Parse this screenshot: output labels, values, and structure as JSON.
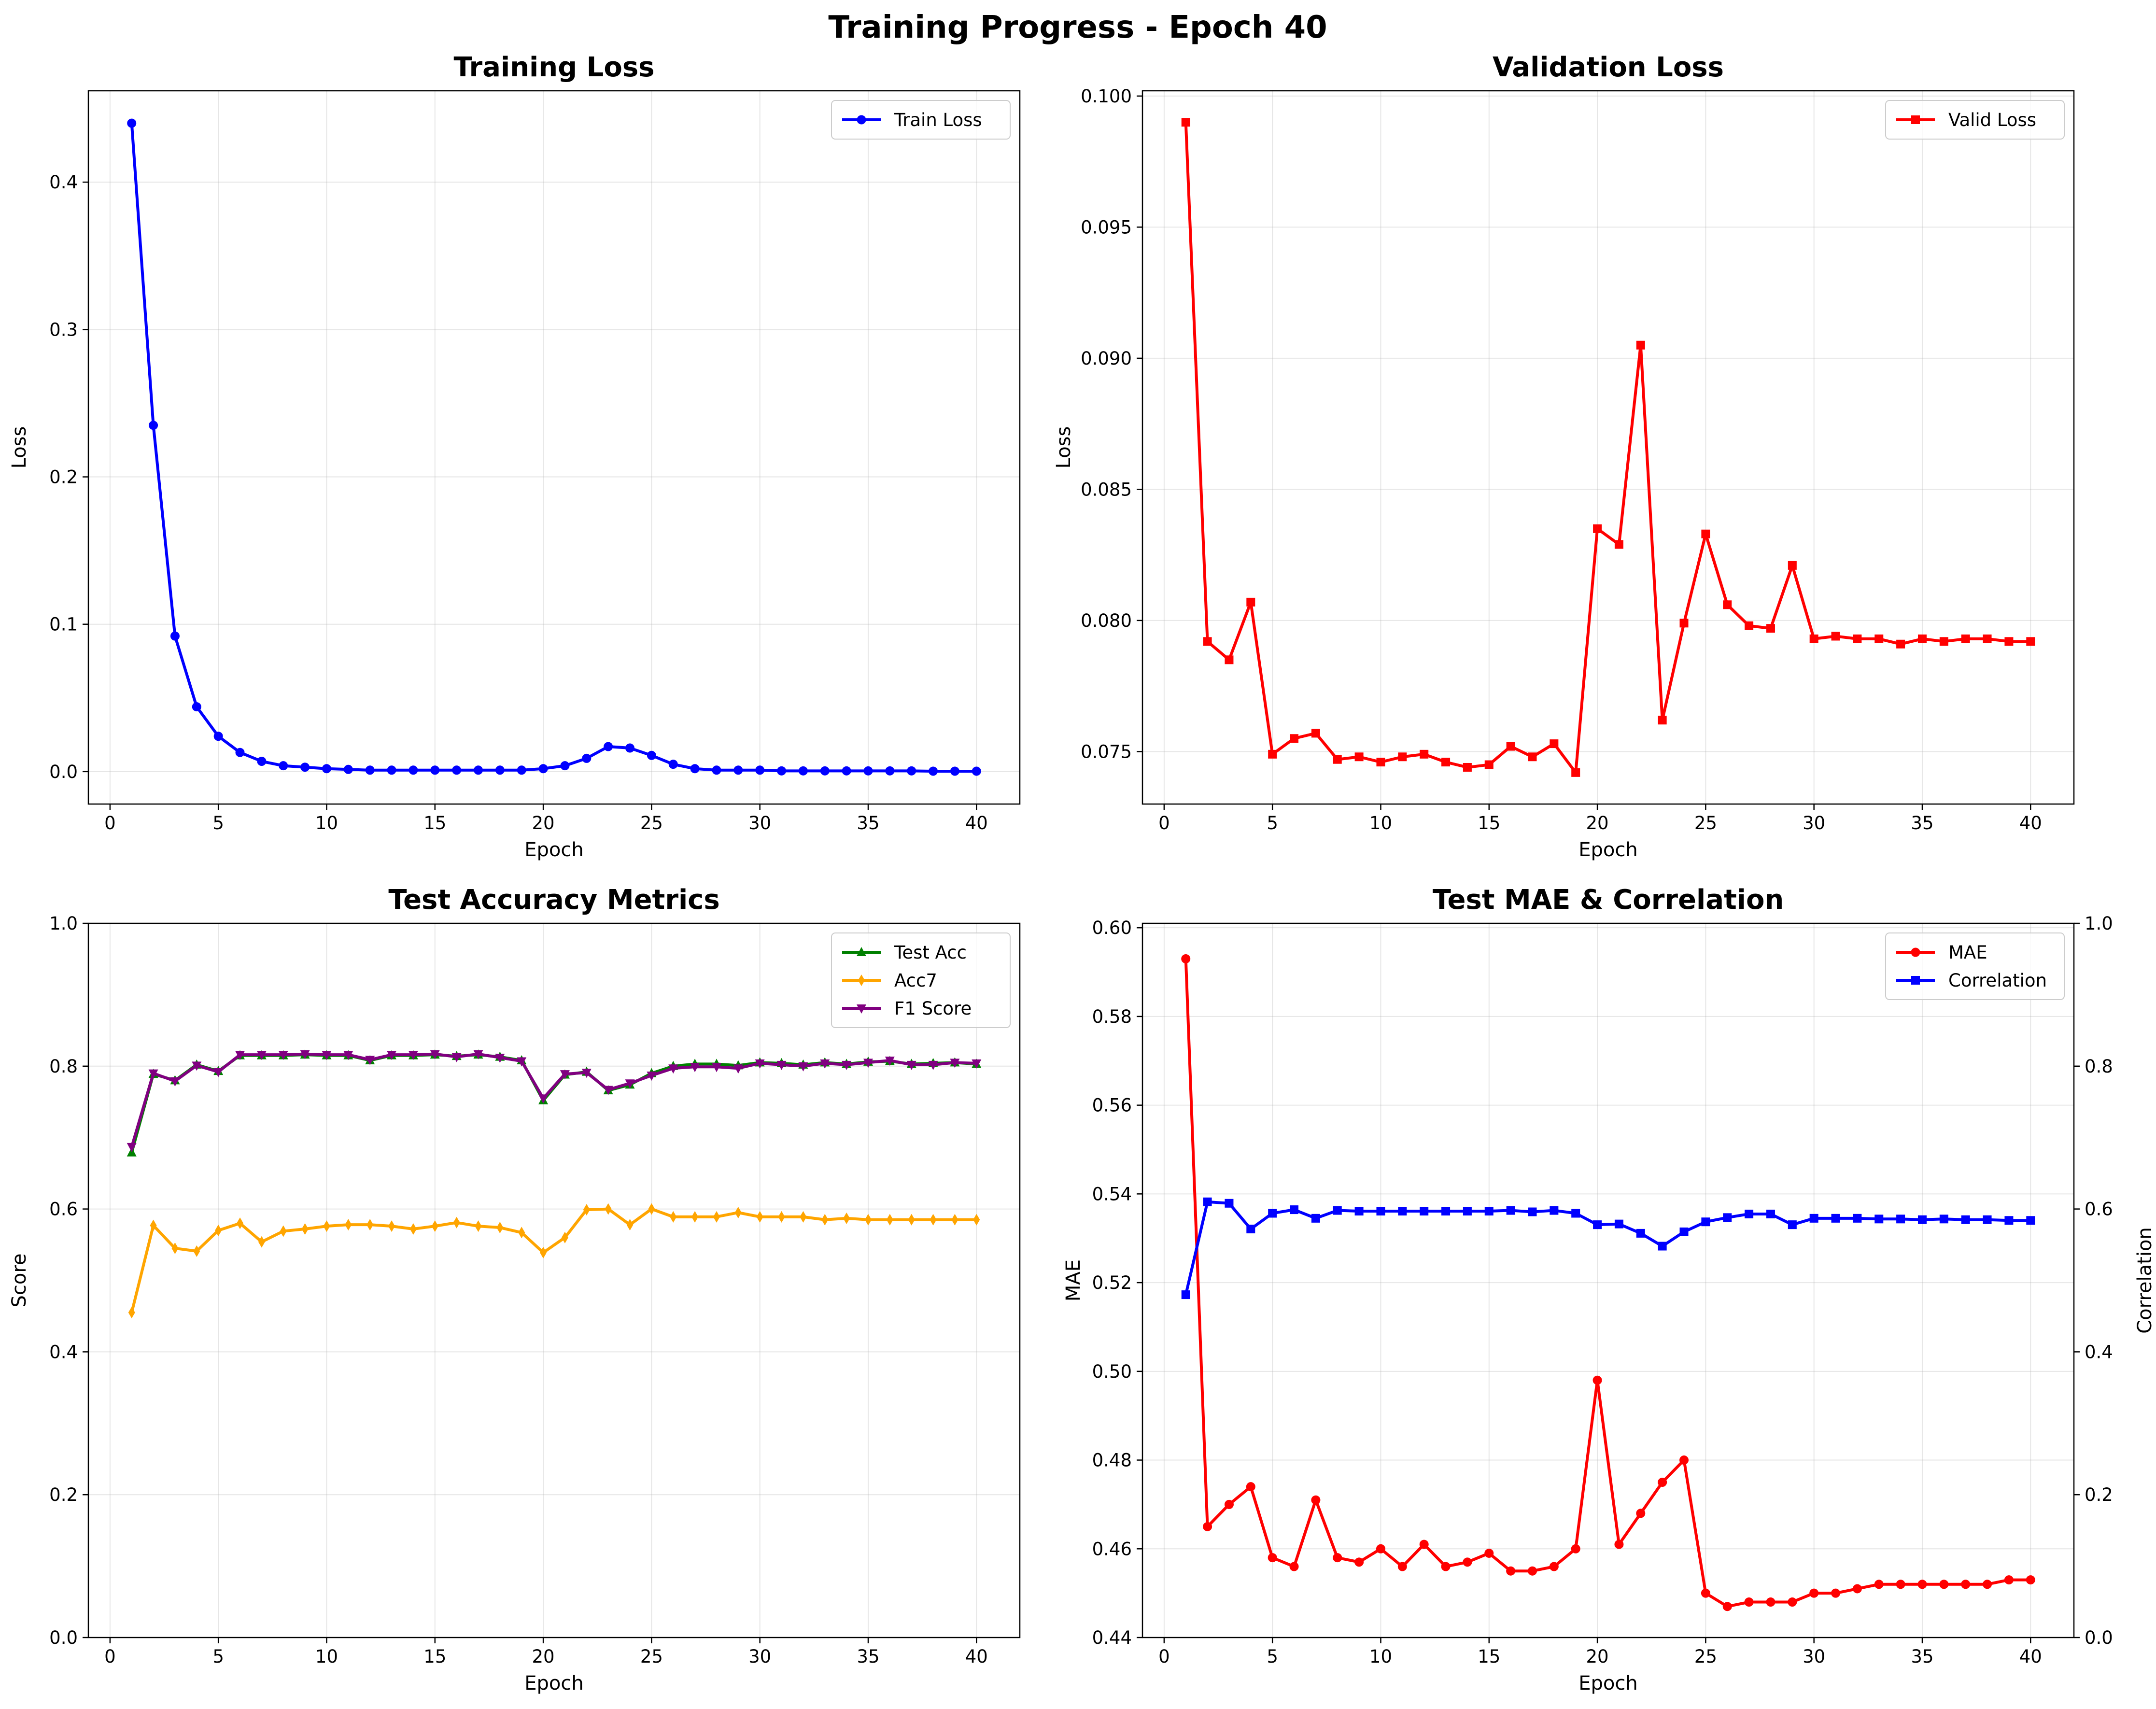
{
  "suptitle": "Training Progress - Epoch 40",
  "chart_data": [
    {
      "type": "line",
      "title": "Training Loss",
      "xlabel": "Epoch",
      "ylabel": "Loss",
      "xlim": [
        -1,
        42
      ],
      "ylim": [
        -0.022,
        0.462
      ],
      "xticks": [
        0,
        5,
        10,
        15,
        20,
        25,
        30,
        35,
        40
      ],
      "yticks": [
        0.0,
        0.1,
        0.2,
        0.3,
        0.4
      ],
      "ytick_labels": [
        "0.0",
        "0.1",
        "0.2",
        "0.3",
        "0.4"
      ],
      "grid": true,
      "legend": "upper right",
      "x": [
        1,
        2,
        3,
        4,
        5,
        6,
        7,
        8,
        9,
        10,
        11,
        12,
        13,
        14,
        15,
        16,
        17,
        18,
        19,
        20,
        21,
        22,
        23,
        24,
        25,
        26,
        27,
        28,
        29,
        30,
        31,
        32,
        33,
        34,
        35,
        36,
        37,
        38,
        39,
        40
      ],
      "series": [
        {
          "name": "Train Loss",
          "color": "#0000ff",
          "marker": "circle",
          "values": [
            0.44,
            0.235,
            0.092,
            0.044,
            0.024,
            0.013,
            0.007,
            0.004,
            0.003,
            0.002,
            0.0015,
            0.001,
            0.001,
            0.001,
            0.001,
            0.001,
            0.001,
            0.001,
            0.001,
            0.002,
            0.004,
            0.009,
            0.017,
            0.016,
            0.011,
            0.005,
            0.002,
            0.001,
            0.001,
            0.001,
            0.0005,
            0.0005,
            0.0005,
            0.0005,
            0.0005,
            0.0005,
            0.0005,
            0.0003,
            0.0003,
            0.0003
          ]
        }
      ]
    },
    {
      "type": "line",
      "title": "Validation Loss",
      "xlabel": "Epoch",
      "ylabel": "Loss",
      "xlim": [
        -1,
        42
      ],
      "ylim": [
        0.073,
        0.1002
      ],
      "xticks": [
        0,
        5,
        10,
        15,
        20,
        25,
        30,
        35,
        40
      ],
      "yticks": [
        0.075,
        0.08,
        0.085,
        0.09,
        0.095,
        0.1
      ],
      "ytick_labels": [
        "0.075",
        "0.080",
        "0.085",
        "0.090",
        "0.095",
        "0.100"
      ],
      "grid": true,
      "legend": "upper right",
      "x": [
        1,
        2,
        3,
        4,
        5,
        6,
        7,
        8,
        9,
        10,
        11,
        12,
        13,
        14,
        15,
        16,
        17,
        18,
        19,
        20,
        21,
        22,
        23,
        24,
        25,
        26,
        27,
        28,
        29,
        30,
        31,
        32,
        33,
        34,
        35,
        36,
        37,
        38,
        39,
        40
      ],
      "series": [
        {
          "name": "Valid Loss",
          "color": "#ff0000",
          "marker": "square",
          "values": [
            0.099,
            0.0792,
            0.0785,
            0.0807,
            0.0749,
            0.0755,
            0.0757,
            0.0747,
            0.0748,
            0.0746,
            0.0748,
            0.0749,
            0.0746,
            0.0744,
            0.0745,
            0.0752,
            0.0748,
            0.0753,
            0.0742,
            0.0835,
            0.0829,
            0.0905,
            0.0762,
            0.0799,
            0.0833,
            0.0806,
            0.0798,
            0.0797,
            0.0821,
            0.0793,
            0.0794,
            0.0793,
            0.0793,
            0.0791,
            0.0793,
            0.0792,
            0.0793,
            0.0793,
            0.0792,
            0.0792
          ]
        }
      ]
    },
    {
      "type": "line",
      "title": "Test Accuracy Metrics",
      "xlabel": "Epoch",
      "ylabel": "Score",
      "xlim": [
        -1,
        42
      ],
      "ylim": [
        0.0,
        1.0
      ],
      "xticks": [
        0,
        5,
        10,
        15,
        20,
        25,
        30,
        35,
        40
      ],
      "yticks": [
        0.0,
        0.2,
        0.4,
        0.6,
        0.8,
        1.0
      ],
      "ytick_labels": [
        "0.0",
        "0.2",
        "0.4",
        "0.6",
        "0.8",
        "1.0"
      ],
      "grid": true,
      "legend": "upper right",
      "x": [
        1,
        2,
        3,
        4,
        5,
        6,
        7,
        8,
        9,
        10,
        11,
        12,
        13,
        14,
        15,
        16,
        17,
        18,
        19,
        20,
        21,
        22,
        23,
        24,
        25,
        26,
        27,
        28,
        29,
        30,
        31,
        32,
        33,
        34,
        35,
        36,
        37,
        38,
        39,
        40
      ],
      "series": [
        {
          "name": "Test Acc",
          "color": "#008000",
          "marker": "triangle-up",
          "values": [
            0.679,
            0.789,
            0.78,
            0.802,
            0.793,
            0.815,
            0.815,
            0.815,
            0.816,
            0.815,
            0.815,
            0.808,
            0.815,
            0.815,
            0.816,
            0.814,
            0.816,
            0.813,
            0.808,
            0.752,
            0.788,
            0.792,
            0.766,
            0.774,
            0.79,
            0.8,
            0.803,
            0.803,
            0.801,
            0.805,
            0.804,
            0.802,
            0.805,
            0.803,
            0.806,
            0.807,
            0.803,
            0.804,
            0.805,
            0.803
          ]
        },
        {
          "name": "Acc7",
          "color": "#ffa500",
          "marker": "diamond",
          "values": [
            0.455,
            0.577,
            0.545,
            0.541,
            0.57,
            0.58,
            0.554,
            0.569,
            0.572,
            0.576,
            0.578,
            0.578,
            0.576,
            0.572,
            0.576,
            0.581,
            0.576,
            0.574,
            0.567,
            0.539,
            0.56,
            0.599,
            0.6,
            0.578,
            0.6,
            0.589,
            0.589,
            0.589,
            0.595,
            0.589,
            0.589,
            0.589,
            0.585,
            0.587,
            0.585,
            0.585,
            0.585,
            0.585,
            0.585,
            0.585
          ]
        },
        {
          "name": "F1 Score",
          "color": "#800080",
          "marker": "triangle-down",
          "values": [
            0.687,
            0.79,
            0.779,
            0.801,
            0.792,
            0.816,
            0.816,
            0.816,
            0.817,
            0.816,
            0.816,
            0.809,
            0.816,
            0.816,
            0.817,
            0.813,
            0.817,
            0.812,
            0.807,
            0.755,
            0.789,
            0.791,
            0.767,
            0.776,
            0.787,
            0.797,
            0.799,
            0.799,
            0.797,
            0.804,
            0.802,
            0.8,
            0.804,
            0.802,
            0.805,
            0.808,
            0.802,
            0.802,
            0.805,
            0.804
          ]
        }
      ]
    },
    {
      "type": "line",
      "title": "Test MAE & Correlation",
      "xlabel": "Epoch",
      "ylabel": "MAE",
      "ylabel_right": "Correlation",
      "xlim": [
        -1,
        42
      ],
      "ylim": [
        0.44,
        0.601
      ],
      "ylim_right": [
        0.0,
        1.0
      ],
      "xticks": [
        0,
        5,
        10,
        15,
        20,
        25,
        30,
        35,
        40
      ],
      "yticks": [
        0.44,
        0.46,
        0.48,
        0.5,
        0.52,
        0.54,
        0.56,
        0.58,
        0.6
      ],
      "ytick_labels": [
        "0.44",
        "0.46",
        "0.48",
        "0.50",
        "0.52",
        "0.54",
        "0.56",
        "0.58",
        "0.60"
      ],
      "yticks_right": [
        0.0,
        0.2,
        0.4,
        0.6,
        0.8,
        1.0
      ],
      "ytick_labels_right": [
        "0.0",
        "0.2",
        "0.4",
        "0.6",
        "0.8",
        "1.0"
      ],
      "left_axis_color": "#ff0000",
      "right_axis_color": "#0000ff",
      "grid": true,
      "legend": "upper right",
      "x": [
        1,
        2,
        3,
        4,
        5,
        6,
        7,
        8,
        9,
        10,
        11,
        12,
        13,
        14,
        15,
        16,
        17,
        18,
        19,
        20,
        21,
        22,
        23,
        24,
        25,
        26,
        27,
        28,
        29,
        30,
        31,
        32,
        33,
        34,
        35,
        36,
        37,
        38,
        39,
        40
      ],
      "series": [
        {
          "name": "MAE",
          "color": "#ff0000",
          "marker": "circle",
          "axis": "left",
          "values": [
            0.593,
            0.465,
            0.47,
            0.474,
            0.458,
            0.456,
            0.471,
            0.458,
            0.457,
            0.46,
            0.456,
            0.461,
            0.456,
            0.457,
            0.459,
            0.455,
            0.455,
            0.456,
            0.46,
            0.498,
            0.461,
            0.468,
            0.475,
            0.48,
            0.45,
            0.447,
            0.448,
            0.448,
            0.448,
            0.45,
            0.45,
            0.451,
            0.452,
            0.452,
            0.452,
            0.452,
            0.452,
            0.452,
            0.453,
            0.453
          ]
        },
        {
          "name": "Correlation",
          "color": "#0000ff",
          "marker": "square",
          "axis": "right",
          "values": [
            0.48,
            0.61,
            0.608,
            0.572,
            0.594,
            0.599,
            0.587,
            0.598,
            0.597,
            0.597,
            0.597,
            0.597,
            0.597,
            0.597,
            0.597,
            0.598,
            0.596,
            0.598,
            0.594,
            0.578,
            0.579,
            0.566,
            0.548,
            0.568,
            0.582,
            0.588,
            0.593,
            0.593,
            0.578,
            0.587,
            0.587,
            0.587,
            0.586,
            0.586,
            0.585,
            0.586,
            0.585,
            0.585,
            0.584,
            0.584
          ]
        }
      ]
    }
  ]
}
